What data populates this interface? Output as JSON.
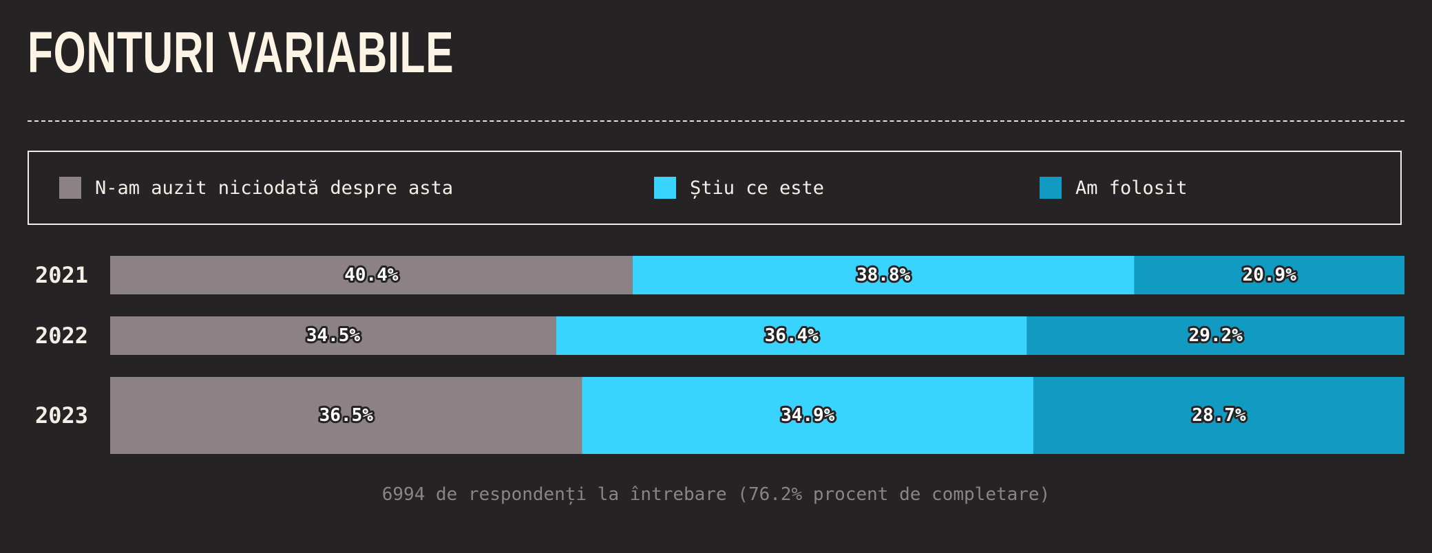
{
  "title": "FONTURI VARIABILE",
  "footnote": "6994 de respondenți la întrebare (76.2% procent de completare)",
  "colors": {
    "background": "#262325",
    "never_heard": "#8c8286",
    "know_what_it_is": "#38d4fd",
    "used": "#119ac2"
  },
  "chart_data": {
    "type": "bar",
    "orientation": "horizontal",
    "stacked": true,
    "title": "FONTURI VARIABILE",
    "legend_position": "top",
    "categories": [
      "2021",
      "2022",
      "2023"
    ],
    "series": [
      {
        "name": "N-am auzit niciodată despre asta",
        "color": "#8c8286",
        "values": [
          40.4,
          34.5,
          36.5
        ]
      },
      {
        "name": "Știu ce este",
        "color": "#38d4fd",
        "values": [
          38.8,
          36.4,
          34.9
        ]
      },
      {
        "name": "Am folosit",
        "color": "#119ac2",
        "values": [
          20.9,
          29.2,
          28.7
        ]
      }
    ],
    "labels": [
      [
        "40.4%",
        "38.8%",
        "20.9%"
      ],
      [
        "34.5%",
        "36.4%",
        "29.2%"
      ],
      [
        "36.5%",
        "34.9%",
        "28.7%"
      ]
    ]
  }
}
